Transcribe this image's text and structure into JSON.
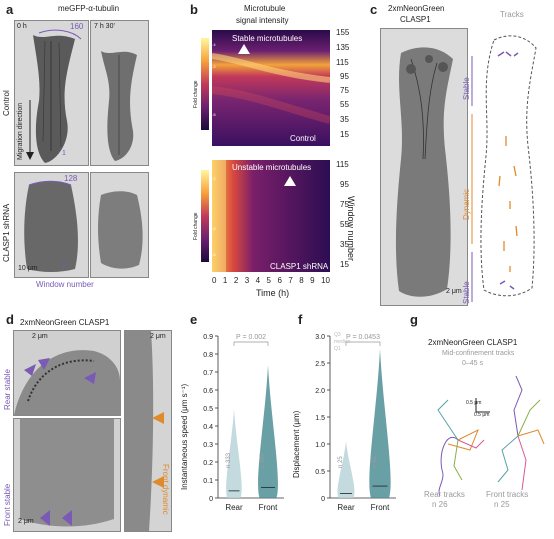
{
  "panel_a": {
    "label": "a",
    "title": "meGFP-α-tubulin",
    "time_left": "0 h",
    "time_right": "7 h 30'",
    "control_label": "Control",
    "shrna_label": "CLASP1 shRNA",
    "migration_label": "Migration direction",
    "window_160": "160",
    "window_128": "128",
    "window_1a": "1",
    "window_1b": "1",
    "scale_bar": "10 μm",
    "window_number": "Window number"
  },
  "panel_b": {
    "label": "b",
    "title_line1": "Microtubule",
    "title_line2": "signal intensity",
    "top_annotation": "Stable microtubules",
    "bottom_annotation": "Unstable microtubules",
    "control_tag": "Control",
    "shrna_tag": "CLASP1 shRNA",
    "colorbar_label": "Fold change",
    "top_colorbar_ticks": [
      "1.4",
      "1.2",
      "1",
      "0.8"
    ],
    "bottom_colorbar_ticks": [
      "1.2",
      "1",
      "0.8",
      "0.6"
    ],
    "top_y_ticks": [
      "155",
      "135",
      "115",
      "95",
      "75",
      "55",
      "35",
      "15"
    ],
    "bottom_y_ticks": [
      "115",
      "95",
      "75",
      "55",
      "35",
      "15"
    ],
    "y_axis_label": "Window number",
    "x_ticks": [
      "0",
      "1",
      "2",
      "3",
      "4",
      "5",
      "6",
      "7",
      "8",
      "9",
      "10"
    ],
    "x_axis_label": "Time (h)"
  },
  "panel_c": {
    "label": "c",
    "title_line1": "2xmNeonGreen",
    "title_line2": "CLASP1",
    "tracks_title": "Tracks",
    "stable_top": "Stable",
    "dynamic": "Dynamic",
    "stable_bottom": "Stable",
    "scale_bar": "2 μm"
  },
  "panel_d": {
    "label": "d",
    "title": "2xmNeonGreen CLASP1",
    "rear_stable": "Rear stable",
    "front_stable": "Front stable",
    "front_dynamic": "Front dynamic",
    "scale_bar_1": "2 μm",
    "scale_bar_2": "2 μm"
  },
  "panel_e": {
    "label": "e",
    "p_value": "P = 0.002",
    "n_rear": "n 333",
    "n_front": "n 848",
    "y_ticks": [
      "0",
      "0.1",
      "0.2",
      "0.3",
      "0.4",
      "0.5",
      "0.6",
      "0.7",
      "0.8",
      "0.9"
    ],
    "y_axis_label": "Instantaneous speed (μm s⁻¹)",
    "x_labels": [
      "Rear",
      "Front"
    ]
  },
  "panel_f": {
    "label": "f",
    "legend_q3": "Q3",
    "legend_median": "median",
    "legend_q1": "Q1",
    "p_value": "P = 0.0453",
    "n_rear": "n 25",
    "n_front": "n 55",
    "y_ticks": [
      "0",
      "0.5",
      "1.0",
      "1.5",
      "2.0",
      "2.5",
      "3.0"
    ],
    "y_axis_label": "Displacement (μm)",
    "x_labels": [
      "Rear",
      "Front"
    ]
  },
  "panel_g": {
    "label": "g",
    "title": "2xmNeonGreen CLASP1",
    "subtitle_line1": "Mid-confinement tracks",
    "subtitle_line2": "0–45 s",
    "scale_y": "0.5 μm",
    "scale_x": "0.5 μm",
    "rear_tracks": "Rear tracks",
    "rear_n": "n 26",
    "front_tracks": "Front tracks",
    "front_n": "n 25"
  },
  "colors": {
    "purple": "#7a5ab5",
    "orange": "#e08a2b",
    "violin_light": "#b9d3d8",
    "violin_dark": "#4f8f97"
  }
}
